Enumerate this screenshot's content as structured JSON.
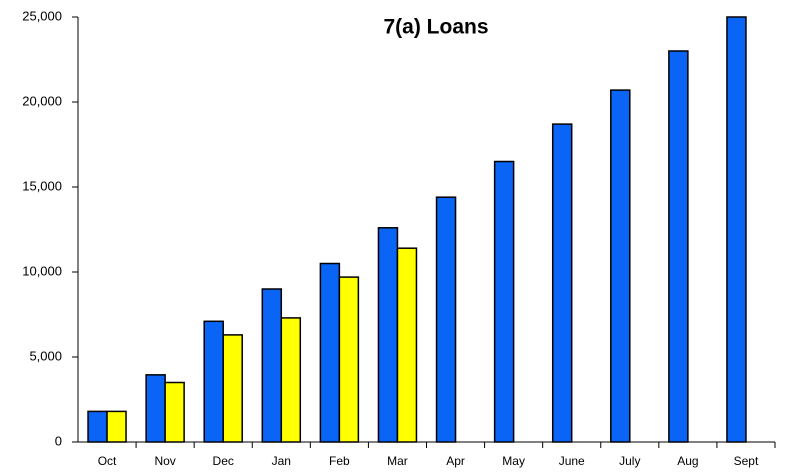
{
  "chart_data": {
    "type": "bar",
    "title": "7(a) Loans",
    "categories": [
      "Oct",
      "Nov",
      "Dec",
      "Jan",
      "Feb",
      "Mar",
      "Apr",
      "May",
      "June",
      "July",
      "Aug",
      "Sept"
    ],
    "series": [
      {
        "color": "#0a64f5",
        "values": [
          1800,
          3950,
          7100,
          9000,
          10500,
          12600,
          14400,
          16500,
          18700,
          20700,
          23000,
          25000
        ]
      },
      {
        "color": "#ffff00",
        "values": [
          1800,
          3500,
          6300,
          7300,
          9700,
          11400,
          null,
          null,
          null,
          null,
          null,
          null
        ]
      }
    ],
    "ylim": [
      0,
      25000
    ],
    "yticks": [
      0,
      {
        "value": 5000,
        "label": "5,000"
      },
      {
        "value": 10000,
        "label": "10,000"
      },
      {
        "value": 15000,
        "label": "15,000"
      },
      {
        "value": 20000,
        "label": "20,000"
      },
      {
        "value": 25000,
        "label": "25,000"
      }
    ],
    "grid": false
  }
}
